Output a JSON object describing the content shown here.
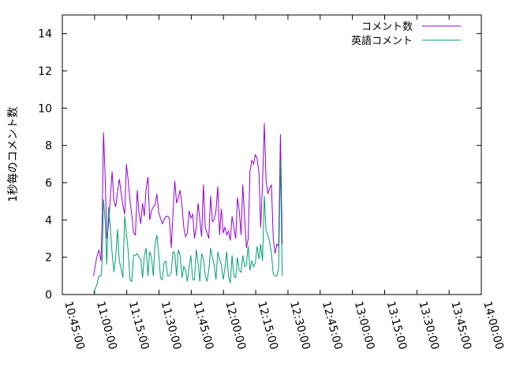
{
  "chart_data": {
    "type": "line",
    "title": "",
    "xlabel": "",
    "ylabel": "1秒毎のコメント数",
    "xlim": [
      "10:45:00",
      "14:00:00"
    ],
    "ylim": [
      0,
      15
    ],
    "x_ticks": [
      "10:45:00",
      "11:00:00",
      "11:15:00",
      "11:30:00",
      "11:45:00",
      "12:00:00",
      "12:15:00",
      "12:30:00",
      "12:45:00",
      "13:00:00",
      "13:15:00",
      "13:30:00",
      "13:45:00",
      "14:00:00"
    ],
    "y_ticks": [
      0,
      2,
      4,
      6,
      8,
      10,
      12,
      14
    ],
    "grid": false,
    "legend_position": "top-right",
    "series": [
      {
        "name": "コメント数",
        "color": "#9400d3",
        "points": [
          [
            "10:59:30",
            1.0
          ],
          [
            "11:01:00",
            2.0
          ],
          [
            "11:02:00",
            2.4
          ],
          [
            "11:03:00",
            1.8
          ],
          [
            "11:03:30",
            3.8
          ],
          [
            "11:04:10",
            8.7
          ],
          [
            "11:05:00",
            6.0
          ],
          [
            "11:05:40",
            3.0
          ],
          [
            "11:06:30",
            3.7
          ],
          [
            "11:07:20",
            5.2
          ],
          [
            "11:08:10",
            6.6
          ],
          [
            "11:09:00",
            5.0
          ],
          [
            "11:09:50",
            4.7
          ],
          [
            "11:10:40",
            5.5
          ],
          [
            "11:11:30",
            6.2
          ],
          [
            "11:12:20",
            5.5
          ],
          [
            "11:13:10",
            4.8
          ],
          [
            "11:14:00",
            4.3
          ],
          [
            "11:14:50",
            7.0
          ],
          [
            "11:15:40",
            6.1
          ],
          [
            "11:16:30",
            5.0
          ],
          [
            "11:17:20",
            4.3
          ],
          [
            "11:18:10",
            3.3
          ],
          [
            "11:19:00",
            3.2
          ],
          [
            "11:19:50",
            5.6
          ],
          [
            "11:20:40",
            4.4
          ],
          [
            "11:21:30",
            3.8
          ],
          [
            "11:22:20",
            4.9
          ],
          [
            "11:23:10",
            4.2
          ],
          [
            "11:24:00",
            5.7
          ],
          [
            "11:24:50",
            6.3
          ],
          [
            "11:25:40",
            4.0
          ],
          [
            "11:26:30",
            4.5
          ],
          [
            "11:27:20",
            4.7
          ],
          [
            "11:28:10",
            4.8
          ],
          [
            "11:29:00",
            5.4
          ],
          [
            "11:29:50",
            4.4
          ],
          [
            "11:30:40",
            4.1
          ],
          [
            "11:31:30",
            3.8
          ],
          [
            "11:32:20",
            4.0
          ],
          [
            "11:33:10",
            4.2
          ],
          [
            "11:34:00",
            4.2
          ],
          [
            "11:34:50",
            4.1
          ],
          [
            "11:35:40",
            2.5
          ],
          [
            "11:36:30",
            4.3
          ],
          [
            "11:37:20",
            6.1
          ],
          [
            "11:38:10",
            4.9
          ],
          [
            "11:39:00",
            5.2
          ],
          [
            "11:39:50",
            5.6
          ],
          [
            "11:40:40",
            4.8
          ],
          [
            "11:41:30",
            3.6
          ],
          [
            "11:42:20",
            3.1
          ],
          [
            "11:43:10",
            3.3
          ],
          [
            "11:44:00",
            4.5
          ],
          [
            "11:44:50",
            4.1
          ],
          [
            "11:45:40",
            4.3
          ],
          [
            "11:46:30",
            3.0
          ],
          [
            "11:47:20",
            3.6
          ],
          [
            "11:48:10",
            4.9
          ],
          [
            "11:49:00",
            4.0
          ],
          [
            "11:49:50",
            3.1
          ],
          [
            "11:50:40",
            5.9
          ],
          [
            "11:51:30",
            3.6
          ],
          [
            "11:52:20",
            3.3
          ],
          [
            "11:53:10",
            3.0
          ],
          [
            "11:54:00",
            5.3
          ],
          [
            "11:54:50",
            3.9
          ],
          [
            "11:55:40",
            4.0
          ],
          [
            "11:56:30",
            4.5
          ],
          [
            "11:57:20",
            5.8
          ],
          [
            "11:58:10",
            3.2
          ],
          [
            "11:59:00",
            4.6
          ],
          [
            "11:59:50",
            3.3
          ],
          [
            "12:00:40",
            3.6
          ],
          [
            "12:01:30",
            3.2
          ],
          [
            "12:02:20",
            3.4
          ],
          [
            "12:03:10",
            2.9
          ],
          [
            "12:04:00",
            4.2
          ],
          [
            "12:04:50",
            3.6
          ],
          [
            "12:05:40",
            3.0
          ],
          [
            "12:06:30",
            5.2
          ],
          [
            "12:07:20",
            4.5
          ],
          [
            "12:08:10",
            3.2
          ],
          [
            "12:09:00",
            5.9
          ],
          [
            "12:09:50",
            4.1
          ],
          [
            "12:10:40",
            2.5
          ],
          [
            "12:11:30",
            3.0
          ],
          [
            "12:12:20",
            6.6
          ],
          [
            "12:13:10",
            7.2
          ],
          [
            "12:14:00",
            7.0
          ],
          [
            "12:14:50",
            7.5
          ],
          [
            "12:15:40",
            7.3
          ],
          [
            "12:16:30",
            6.5
          ],
          [
            "12:17:20",
            3.6
          ],
          [
            "12:18:10",
            6.0
          ],
          [
            "12:19:00",
            9.2
          ],
          [
            "12:19:50",
            6.1
          ],
          [
            "12:20:40",
            5.4
          ],
          [
            "12:21:30",
            5.7
          ],
          [
            "12:22:20",
            5.9
          ],
          [
            "12:23:10",
            3.0
          ],
          [
            "12:24:00",
            2.2
          ],
          [
            "12:24:50",
            2.7
          ],
          [
            "12:25:40",
            2.6
          ],
          [
            "12:26:30",
            8.6
          ],
          [
            "12:27:20",
            2.7
          ]
        ]
      },
      {
        "name": "英語コメント",
        "color": "#009e73",
        "points": [
          [
            "10:59:30",
            0.1
          ],
          [
            "11:01:00",
            0.5
          ],
          [
            "11:02:00",
            1.0
          ],
          [
            "11:03:00",
            1.0
          ],
          [
            "11:03:30",
            1.8
          ],
          [
            "11:04:10",
            5.1
          ],
          [
            "11:05:00",
            3.8
          ],
          [
            "11:05:40",
            1.6
          ],
          [
            "11:06:30",
            4.7
          ],
          [
            "11:07:20",
            3.6
          ],
          [
            "11:08:10",
            2.2
          ],
          [
            "11:09:00",
            1.2
          ],
          [
            "11:09:50",
            2.0
          ],
          [
            "11:10:40",
            3.5
          ],
          [
            "11:11:30",
            1.8
          ],
          [
            "11:12:20",
            1.4
          ],
          [
            "11:13:10",
            0.9
          ],
          [
            "11:14:00",
            4.2
          ],
          [
            "11:14:50",
            3.3
          ],
          [
            "11:15:40",
            2.3
          ],
          [
            "11:16:30",
            0.8
          ],
          [
            "11:17:20",
            0.7
          ],
          [
            "11:18:10",
            2.1
          ],
          [
            "11:19:00",
            2.1
          ],
          [
            "11:19:50",
            2.2
          ],
          [
            "11:20:40",
            2.0
          ],
          [
            "11:21:30",
            1.9
          ],
          [
            "11:22:20",
            0.9
          ],
          [
            "11:23:10",
            2.1
          ],
          [
            "11:24:00",
            2.5
          ],
          [
            "11:24:50",
            1.0
          ],
          [
            "11:25:40",
            2.3
          ],
          [
            "11:26:30",
            2.0
          ],
          [
            "11:27:20",
            1.0
          ],
          [
            "11:28:10",
            2.7
          ],
          [
            "11:29:00",
            3.2
          ],
          [
            "11:29:50",
            2.2
          ],
          [
            "11:30:40",
            0.9
          ],
          [
            "11:31:30",
            0.8
          ],
          [
            "11:32:20",
            1.7
          ],
          [
            "11:33:10",
            1.8
          ],
          [
            "11:34:00",
            1.0
          ],
          [
            "11:34:50",
            1.0
          ],
          [
            "11:35:40",
            1.2
          ],
          [
            "11:36:30",
            2.3
          ],
          [
            "11:37:20",
            2.2
          ],
          [
            "11:38:10",
            1.0
          ],
          [
            "11:39:00",
            2.4
          ],
          [
            "11:39:50",
            2.1
          ],
          [
            "11:40:40",
            0.9
          ],
          [
            "11:41:30",
            1.5
          ],
          [
            "11:42:20",
            1.3
          ],
          [
            "11:43:10",
            0.7
          ],
          [
            "11:44:00",
            1.5
          ],
          [
            "11:44:50",
            2.1
          ],
          [
            "11:45:40",
            0.8
          ],
          [
            "11:46:30",
            0.8
          ],
          [
            "11:47:20",
            2.4
          ],
          [
            "11:48:10",
            1.7
          ],
          [
            "11:49:00",
            0.7
          ],
          [
            "11:49:50",
            2.2
          ],
          [
            "11:50:40",
            1.9
          ],
          [
            "11:51:30",
            1.0
          ],
          [
            "11:52:20",
            0.7
          ],
          [
            "11:53:10",
            1.3
          ],
          [
            "11:54:00",
            2.5
          ],
          [
            "11:54:50",
            2.0
          ],
          [
            "11:55:40",
            1.6
          ],
          [
            "11:56:30",
            0.8
          ],
          [
            "11:57:20",
            2.3
          ],
          [
            "11:58:10",
            1.9
          ],
          [
            "11:59:00",
            1.6
          ],
          [
            "11:59:50",
            0.8
          ],
          [
            "12:00:40",
            1.4
          ],
          [
            "12:01:30",
            2.3
          ],
          [
            "12:02:20",
            1.0
          ],
          [
            "12:03:10",
            0.6
          ],
          [
            "12:04:00",
            2.1
          ],
          [
            "12:04:50",
            1.0
          ],
          [
            "12:05:40",
            0.9
          ],
          [
            "12:06:30",
            2.0
          ],
          [
            "12:07:20",
            1.3
          ],
          [
            "12:08:10",
            1.2
          ],
          [
            "12:09:00",
            2.1
          ],
          [
            "12:09:50",
            1.5
          ],
          [
            "12:10:40",
            1.6
          ],
          [
            "12:11:30",
            2.6
          ],
          [
            "12:12:20",
            1.3
          ],
          [
            "12:13:10",
            1.8
          ],
          [
            "12:14:00",
            1.5
          ],
          [
            "12:14:50",
            1.7
          ],
          [
            "12:15:40",
            2.6
          ],
          [
            "12:16:30",
            1.9
          ],
          [
            "12:17:20",
            2.7
          ],
          [
            "12:18:10",
            1.8
          ],
          [
            "12:19:00",
            5.3
          ],
          [
            "12:19:50",
            3.4
          ],
          [
            "12:20:40",
            3.2
          ],
          [
            "12:21:30",
            2.8
          ],
          [
            "12:22:20",
            2.2
          ],
          [
            "12:23:10",
            1.1
          ],
          [
            "12:24:00",
            1.0
          ],
          [
            "12:24:50",
            1.0
          ],
          [
            "12:25:40",
            1.4
          ],
          [
            "12:26:30",
            7.2
          ],
          [
            "12:27:20",
            1.0
          ]
        ]
      }
    ]
  }
}
